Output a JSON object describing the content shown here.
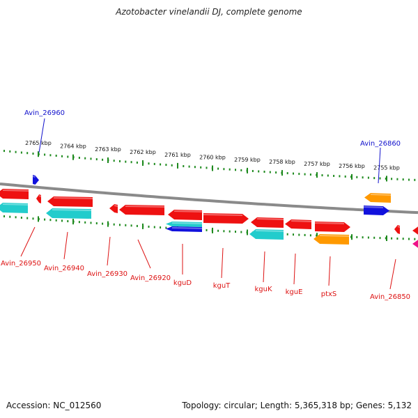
{
  "title": "Azotobacter vinelandii DJ, complete genome",
  "footer": {
    "accession": "Accession: NC_012560",
    "summary": "Topology: circular; Length: 5,365,318 bp; Genes: 5,132"
  },
  "colors": {
    "backbone": "#8a8a8a",
    "tick": "#1e8a1e",
    "gene_red": "#ee1111",
    "gene_cyan": "#22cccc",
    "gene_orange": "#ff9900",
    "gene_blue": "#1111dd",
    "gene_magenta": "#ee1188",
    "label_red": "#dd1111",
    "label_blue": "#1111cc"
  },
  "axis_ticks": [
    "2765 kbp",
    "2764 kbp",
    "2763 kbp",
    "2762 kbp",
    "2761 kbp",
    "2760 kbp",
    "2759 kbp",
    "2758 kbp",
    "2757 kbp",
    "2756 kbp",
    "2755 kbp"
  ],
  "gene_labels": {
    "top": [
      {
        "text": "Avin_26960",
        "color": "blue"
      },
      {
        "text": "Avin_26860",
        "color": "blue"
      }
    ],
    "bottom": [
      {
        "text": "Avin_26950",
        "color": "red"
      },
      {
        "text": "Avin_26940",
        "color": "red"
      },
      {
        "text": "Avin_26930",
        "color": "red"
      },
      {
        "text": "Avin_26920",
        "color": "red"
      },
      {
        "text": "kguD",
        "color": "red"
      },
      {
        "text": "kguT",
        "color": "red"
      },
      {
        "text": "kguK",
        "color": "red"
      },
      {
        "text": "kguE",
        "color": "red"
      },
      {
        "text": "ptxS",
        "color": "red"
      },
      {
        "text": "Avin_26850",
        "color": "red"
      }
    ]
  }
}
